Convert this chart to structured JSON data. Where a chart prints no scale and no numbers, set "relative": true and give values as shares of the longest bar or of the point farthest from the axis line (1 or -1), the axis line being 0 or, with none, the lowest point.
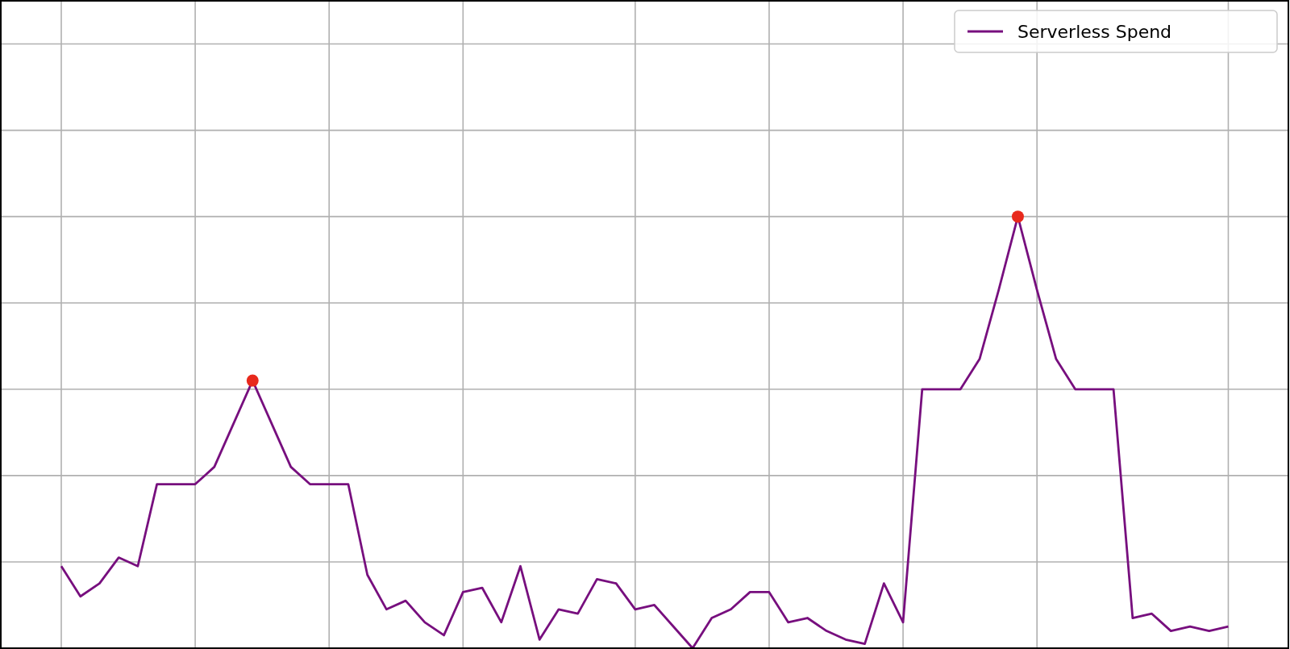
{
  "chart_data": {
    "type": "line",
    "relative": true,
    "grid": true,
    "legend": "top right",
    "categories": [
      null,
      null,
      null,
      null,
      null,
      null,
      null,
      null,
      null,
      null,
      null,
      null,
      null,
      null,
      null,
      null,
      null,
      null,
      null,
      null,
      null,
      null,
      null,
      null,
      null,
      null,
      null,
      null,
      null,
      null,
      null,
      null,
      null,
      null,
      null,
      null,
      null,
      null,
      null,
      null,
      null,
      null,
      null,
      null,
      null,
      null,
      null,
      null,
      null,
      null,
      null,
      null,
      null,
      null,
      null,
      null,
      null,
      null,
      null,
      null,
      null,
      null
    ],
    "series": [
      {
        "name": "Serverless Spend",
        "color": "#770f7e",
        "values": [
          0.19,
          0.12,
          0.15,
          0.21,
          0.19,
          0.38,
          0.38,
          0.38,
          0.42,
          0.52,
          0.62,
          0.52,
          0.42,
          0.38,
          0.38,
          0.38,
          0.17,
          0.09,
          0.11,
          0.06,
          0.03,
          0.13,
          0.14,
          0.06,
          0.19,
          0.02,
          0.09,
          0.08,
          0.16,
          0.15,
          0.09,
          0.1,
          0.05,
          0.0,
          0.07,
          0.09,
          0.13,
          0.13,
          0.06,
          0.07,
          0.04,
          0.02,
          0.01,
          0.15,
          0.06,
          0.6,
          0.6,
          0.6,
          0.67,
          0.83,
          1,
          0.83,
          0.67,
          0.6,
          0.6,
          0.6,
          0.07,
          0.08,
          0.04,
          0.05,
          0.04,
          0.05
        ]
      }
    ]
  }
}
